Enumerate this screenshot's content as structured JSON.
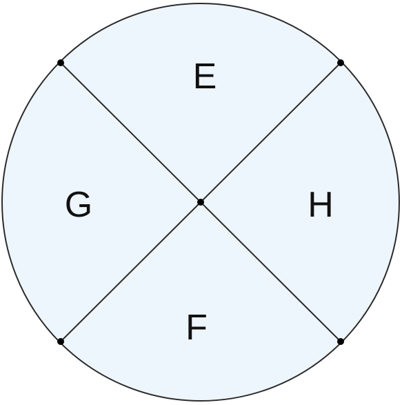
{
  "diagram": {
    "fill_color": "#eef6fd",
    "stroke_color": "#2b2b2b",
    "point_color": "#000000",
    "regions": {
      "top": "E",
      "bottom": "F",
      "left": "G",
      "right": "H"
    }
  }
}
